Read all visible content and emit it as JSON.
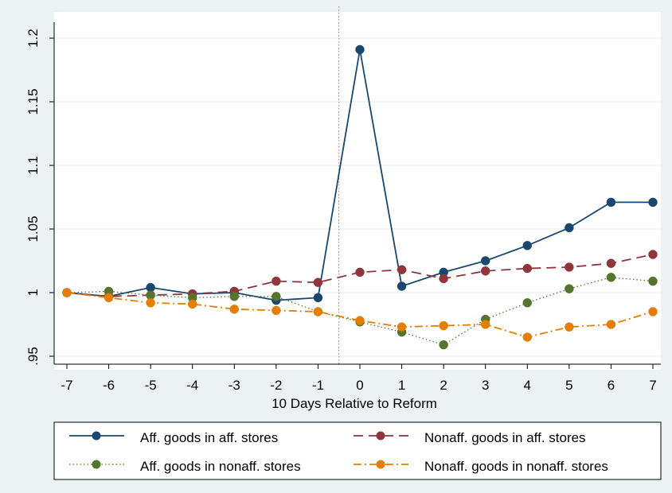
{
  "chart_data": {
    "type": "line",
    "title": "",
    "xlabel": "10 Days Relative to Reform",
    "ylabel": "",
    "x": [
      -7,
      -6,
      -5,
      -4,
      -3,
      -2,
      -1,
      0,
      1,
      2,
      3,
      4,
      5,
      6,
      7
    ],
    "xlim": [
      -7,
      7
    ],
    "ylim": [
      0.95,
      1.2
    ],
    "xticks": [
      "-7",
      "-6",
      "-5",
      "-4",
      "-3",
      "-2",
      "-1",
      "0",
      "1",
      "2",
      "3",
      "4",
      "5",
      "6",
      "7"
    ],
    "yticks": [
      {
        "value": 0.95,
        "label": ".95"
      },
      {
        "value": 1.0,
        "label": "1"
      },
      {
        "value": 1.05,
        "label": "1.05"
      },
      {
        "value": 1.1,
        "label": "1.1"
      },
      {
        "value": 1.15,
        "label": "1.15"
      },
      {
        "value": 1.2,
        "label": "1.2"
      }
    ],
    "reference_line_x": -0.5,
    "grid": true,
    "legend_position": "bottom",
    "series": [
      {
        "name": "Aff. goods in aff. stores",
        "values": [
          1.0,
          0.997,
          1.004,
          0.999,
          1.0,
          0.994,
          0.996,
          1.191,
          1.005,
          1.016,
          1.025,
          1.037,
          1.051,
          1.071,
          1.071
        ],
        "color": "#1a476f",
        "dash": "solid"
      },
      {
        "name": "Nonaff. goods in aff. stores",
        "values": [
          1.0,
          0.997,
          0.998,
          0.999,
          1.001,
          1.009,
          1.008,
          1.016,
          1.018,
          1.011,
          1.017,
          1.019,
          1.02,
          1.023,
          1.03
        ],
        "color": "#90353b",
        "dash": "dash"
      },
      {
        "name": "Aff. goods in nonaff. stores",
        "values": [
          1.0,
          1.001,
          0.998,
          0.996,
          0.997,
          0.997,
          0.985,
          0.977,
          0.969,
          0.959,
          0.979,
          0.992,
          1.003,
          1.012,
          1.009
        ],
        "color": "#55752f",
        "dash": "dot"
      },
      {
        "name": "Nonaff. goods in nonaff. stores",
        "values": [
          1.0,
          0.996,
          0.992,
          0.991,
          0.987,
          0.986,
          0.985,
          0.978,
          0.973,
          0.974,
          0.975,
          0.965,
          0.973,
          0.975,
          0.985
        ],
        "color": "#e37e00",
        "dash": "dashdot"
      }
    ]
  }
}
